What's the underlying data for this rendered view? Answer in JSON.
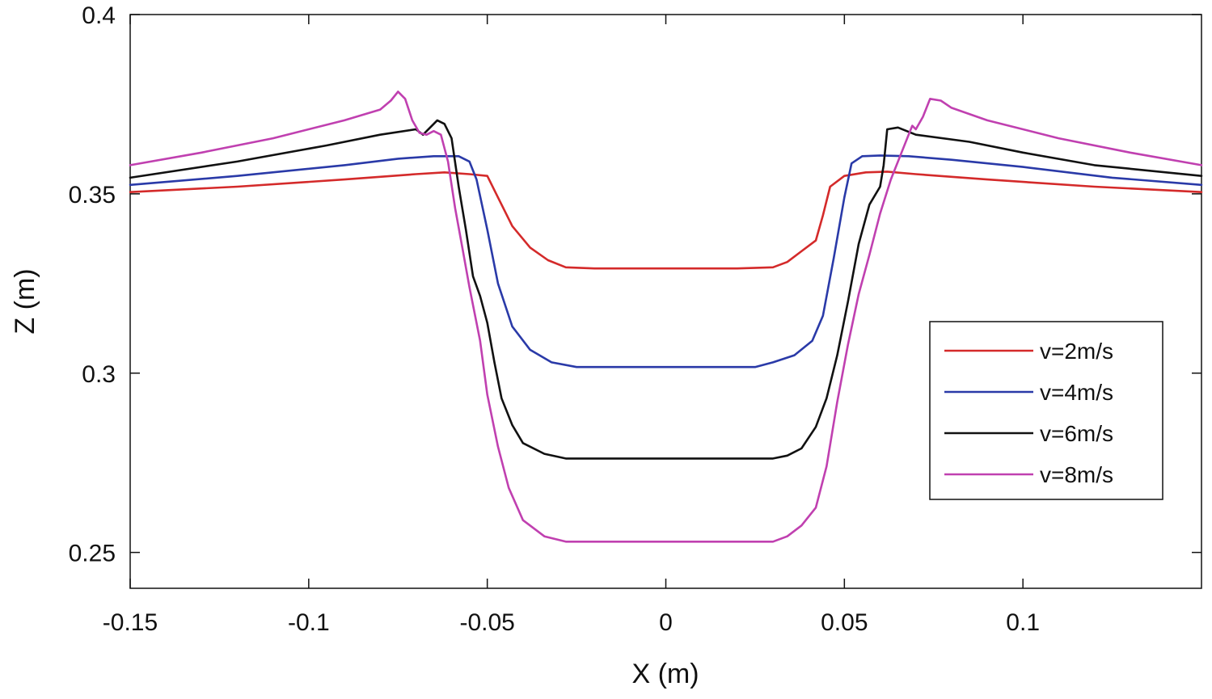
{
  "chart_data": {
    "type": "line",
    "title": "",
    "xlabel": "X (m)",
    "ylabel": "Z (m)",
    "xlim": [
      -0.15,
      0.15
    ],
    "ylim": [
      0.24,
      0.4
    ],
    "xticks": [
      -0.15,
      -0.1,
      -0.05,
      0,
      0.05,
      0.1
    ],
    "xtick_labels": [
      "-0.15",
      "-0.1",
      "-0.05",
      "0",
      "0.05",
      "0.1"
    ],
    "yticks": [
      0.25,
      0.3,
      0.35,
      0.4
    ],
    "ytick_labels": [
      "0.25",
      "0.3",
      "0.35",
      "0.4"
    ],
    "grid": false,
    "legend_position": "right",
    "series": [
      {
        "name": "v=2m/s",
        "color": "#d42a2a",
        "points": [
          [
            -0.15,
            0.3505
          ],
          [
            -0.12,
            0.352
          ],
          [
            -0.09,
            0.354
          ],
          [
            -0.07,
            0.3555
          ],
          [
            -0.062,
            0.356
          ],
          [
            -0.055,
            0.3555
          ],
          [
            -0.05,
            0.355
          ],
          [
            -0.047,
            0.349
          ],
          [
            -0.043,
            0.341
          ],
          [
            -0.038,
            0.335
          ],
          [
            -0.033,
            0.3315
          ],
          [
            -0.028,
            0.3295
          ],
          [
            -0.02,
            0.3292
          ],
          [
            0,
            0.3292
          ],
          [
            0.02,
            0.3292
          ],
          [
            0.03,
            0.3295
          ],
          [
            0.034,
            0.331
          ],
          [
            0.038,
            0.334
          ],
          [
            0.042,
            0.337
          ],
          [
            0.044,
            0.344
          ],
          [
            0.046,
            0.352
          ],
          [
            0.05,
            0.355
          ],
          [
            0.056,
            0.356
          ],
          [
            0.062,
            0.3562
          ],
          [
            0.07,
            0.3555
          ],
          [
            0.09,
            0.354
          ],
          [
            0.12,
            0.352
          ],
          [
            0.15,
            0.3505
          ]
        ]
      },
      {
        "name": "v=4m/s",
        "color": "#2a3aa8",
        "points": [
          [
            -0.15,
            0.3525
          ],
          [
            -0.12,
            0.355
          ],
          [
            -0.09,
            0.358
          ],
          [
            -0.075,
            0.3598
          ],
          [
            -0.065,
            0.3605
          ],
          [
            -0.058,
            0.3605
          ],
          [
            -0.055,
            0.359
          ],
          [
            -0.053,
            0.354
          ],
          [
            -0.05,
            0.34
          ],
          [
            -0.047,
            0.325
          ],
          [
            -0.043,
            0.313
          ],
          [
            -0.038,
            0.3065
          ],
          [
            -0.032,
            0.303
          ],
          [
            -0.025,
            0.3017
          ],
          [
            0,
            0.3017
          ],
          [
            0.025,
            0.3017
          ],
          [
            0.03,
            0.303
          ],
          [
            0.036,
            0.305
          ],
          [
            0.041,
            0.309
          ],
          [
            0.044,
            0.316
          ],
          [
            0.047,
            0.332
          ],
          [
            0.05,
            0.349
          ],
          [
            0.052,
            0.3585
          ],
          [
            0.055,
            0.3605
          ],
          [
            0.06,
            0.3607
          ],
          [
            0.068,
            0.3605
          ],
          [
            0.08,
            0.3595
          ],
          [
            0.1,
            0.3575
          ],
          [
            0.125,
            0.3545
          ],
          [
            0.15,
            0.3525
          ]
        ]
      },
      {
        "name": "v=6m/s",
        "color": "#111111",
        "points": [
          [
            -0.15,
            0.3545
          ],
          [
            -0.12,
            0.359
          ],
          [
            -0.095,
            0.3635
          ],
          [
            -0.08,
            0.3665
          ],
          [
            -0.07,
            0.368
          ],
          [
            -0.068,
            0.3665
          ],
          [
            -0.066,
            0.3685
          ],
          [
            -0.064,
            0.3705
          ],
          [
            -0.062,
            0.3695
          ],
          [
            -0.06,
            0.3655
          ],
          [
            -0.058,
            0.352
          ],
          [
            -0.056,
            0.34
          ],
          [
            -0.054,
            0.327
          ],
          [
            -0.052,
            0.3215
          ],
          [
            -0.05,
            0.314
          ],
          [
            -0.048,
            0.303
          ],
          [
            -0.046,
            0.293
          ],
          [
            -0.043,
            0.2855
          ],
          [
            -0.04,
            0.2805
          ],
          [
            -0.034,
            0.2775
          ],
          [
            -0.028,
            0.2762
          ],
          [
            0,
            0.2762
          ],
          [
            0.02,
            0.2762
          ],
          [
            0.03,
            0.2762
          ],
          [
            0.034,
            0.277
          ],
          [
            0.038,
            0.279
          ],
          [
            0.042,
            0.285
          ],
          [
            0.045,
            0.293
          ],
          [
            0.048,
            0.305
          ],
          [
            0.051,
            0.32
          ],
          [
            0.054,
            0.336
          ],
          [
            0.057,
            0.347
          ],
          [
            0.06,
            0.352
          ],
          [
            0.061,
            0.358
          ],
          [
            0.062,
            0.368
          ],
          [
            0.065,
            0.3685
          ],
          [
            0.07,
            0.3665
          ],
          [
            0.085,
            0.3645
          ],
          [
            0.1,
            0.3615
          ],
          [
            0.12,
            0.358
          ],
          [
            0.15,
            0.355
          ]
        ]
      },
      {
        "name": "v=8m/s",
        "color": "#c040b0",
        "points": [
          [
            -0.15,
            0.358
          ],
          [
            -0.13,
            0.3615
          ],
          [
            -0.11,
            0.3655
          ],
          [
            -0.09,
            0.3705
          ],
          [
            -0.08,
            0.3735
          ],
          [
            -0.077,
            0.376
          ],
          [
            -0.075,
            0.3785
          ],
          [
            -0.073,
            0.3765
          ],
          [
            -0.071,
            0.3705
          ],
          [
            -0.069,
            0.367
          ],
          [
            -0.067,
            0.3665
          ],
          [
            -0.065,
            0.3675
          ],
          [
            -0.063,
            0.3665
          ],
          [
            -0.061,
            0.359
          ],
          [
            -0.059,
            0.346
          ],
          [
            -0.057,
            0.335
          ],
          [
            -0.055,
            0.324
          ],
          [
            -0.052,
            0.309
          ],
          [
            -0.05,
            0.294
          ],
          [
            -0.047,
            0.2795
          ],
          [
            -0.044,
            0.268
          ],
          [
            -0.04,
            0.259
          ],
          [
            -0.034,
            0.2545
          ],
          [
            -0.028,
            0.253
          ],
          [
            0,
            0.253
          ],
          [
            0.03,
            0.253
          ],
          [
            0.034,
            0.2545
          ],
          [
            0.038,
            0.2575
          ],
          [
            0.042,
            0.2625
          ],
          [
            0.045,
            0.274
          ],
          [
            0.048,
            0.292
          ],
          [
            0.051,
            0.308
          ],
          [
            0.054,
            0.322
          ],
          [
            0.057,
            0.333
          ],
          [
            0.06,
            0.3445
          ],
          [
            0.063,
            0.354
          ],
          [
            0.066,
            0.3615
          ],
          [
            0.068,
            0.3665
          ],
          [
            0.069,
            0.369
          ],
          [
            0.07,
            0.368
          ],
          [
            0.072,
            0.3715
          ],
          [
            0.074,
            0.3765
          ],
          [
            0.077,
            0.376
          ],
          [
            0.08,
            0.374
          ],
          [
            0.09,
            0.3705
          ],
          [
            0.11,
            0.3655
          ],
          [
            0.13,
            0.3615
          ],
          [
            0.15,
            0.358
          ]
        ]
      }
    ]
  }
}
